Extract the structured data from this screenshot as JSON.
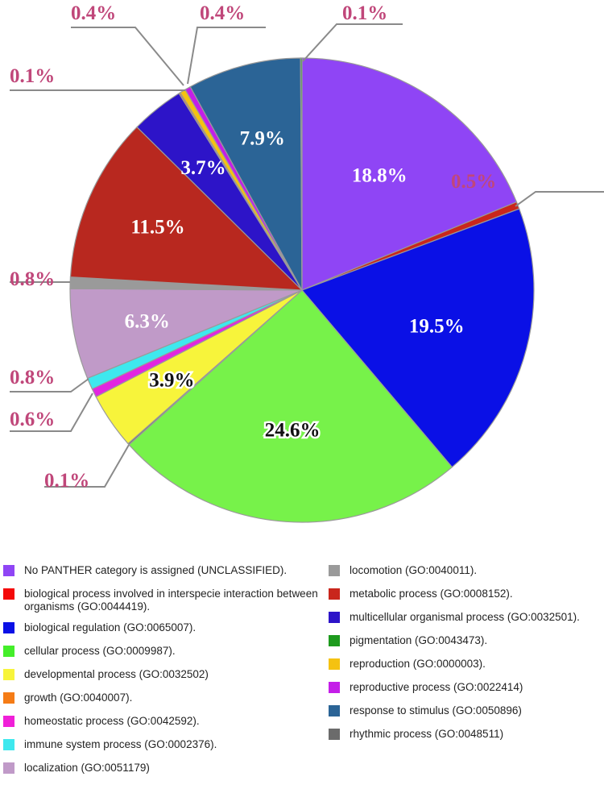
{
  "chart_data": {
    "type": "pie",
    "slices": [
      {
        "label": "No PANTHER category is assigned (UNCLASSIFIED).",
        "value": 18.8,
        "display": "18.8%",
        "color": "#8f45f5",
        "text_color": "#ffffff",
        "label_pos": "inside"
      },
      {
        "label": "metabolic process (GO:0008152).",
        "value": 0.5,
        "display": "0.5%",
        "color": "#c9261c",
        "label_pos": "outside"
      },
      {
        "label": "biological regulation (GO:0065007).",
        "value": 19.5,
        "display": "19.5%",
        "color": "#0a10e6",
        "text_color": "#ffffff",
        "label_pos": "inside"
      },
      {
        "label": "cellular process (GO:0009987).",
        "value": 24.6,
        "display": "24.6%",
        "color": "#77f24a",
        "text_color": "#111111",
        "label_pos": "inside"
      },
      {
        "label": "rhythmic process (GO:0048511)",
        "value": 0.1,
        "display": "0.1%",
        "color": "#6b6b6b",
        "label_pos": "outside"
      },
      {
        "label": "developmental process (GO:0032502)",
        "value": 3.9,
        "display": "3.9%",
        "color": "#f7f43b",
        "text_color": "#111111",
        "label_pos": "inside"
      },
      {
        "label": "homeostatic process (GO:0042592).",
        "value": 0.6,
        "display": "0.6%",
        "color": "#e226e0",
        "label_pos": "outside"
      },
      {
        "label": "immune system process (GO:0002376).",
        "value": 0.8,
        "display": "0.8%",
        "color": "#3ee8ee",
        "label_pos": "outside"
      },
      {
        "label": "localization (GO:0051179)",
        "value": 6.3,
        "display": "6.3%",
        "color": "#c09ac8",
        "text_color": "#ffffff",
        "label_pos": "inside"
      },
      {
        "label": "locomotion (GO:0040011).",
        "value": 0.8,
        "display": "0.8%",
        "color": "#9a9a9a",
        "label_pos": "outside"
      },
      {
        "label": "biological process involved in interspecie interaction between organisms (GO:0044419).",
        "value": 11.5,
        "display": "11.5%",
        "color": "#b8281f",
        "text_color": "#ffffff",
        "label_pos": "inside"
      },
      {
        "label": "multicellular organismal process (GO:0032501).",
        "value": 3.7,
        "display": "3.7%",
        "color": "#2d14c8",
        "text_color": "#ffffff",
        "label_pos": "inside"
      },
      {
        "label": "growth (GO:0040007).",
        "value": 0.1,
        "display": "0.1%",
        "color": "#f57c16",
        "label_pos": "outside"
      },
      {
        "label": "reproduction (GO:0000003).",
        "value": 0.4,
        "display": "0.4%",
        "color": "#f5c211",
        "label_pos": "outside"
      },
      {
        "label": "reproductive process (GO:0022414)",
        "value": 0.4,
        "display": "0.4%",
        "color": "#c41ee8",
        "label_pos": "outside"
      },
      {
        "label": "response to stimulus (GO:0050896)",
        "value": 7.9,
        "display": "7.9%",
        "color": "#2b6496",
        "text_color": "#ffffff",
        "label_pos": "inside"
      },
      {
        "label": "pigmentation (GO:0043473).",
        "value": 0.1,
        "display": "0.1%",
        "color": "#1d9a1d",
        "label_pos": "outside"
      }
    ],
    "legend": {
      "left": [
        {
          "label": "No PANTHER category is assigned (UNCLASSIFIED).",
          "color": "#8f45f5"
        },
        {
          "label": "biological process involved in interspecie interaction between organisms (GO:0044419).",
          "color": "#f40a0a"
        },
        {
          "label": "biological regulation (GO:0065007).",
          "color": "#0a10e6"
        },
        {
          "label": "cellular process (GO:0009987).",
          "color": "#44ee2a"
        },
        {
          "label": "developmental process (GO:0032502)",
          "color": "#f7f43b"
        },
        {
          "label": "growth (GO:0040007).",
          "color": "#f57c16"
        },
        {
          "label": "homeostatic process (GO:0042592).",
          "color": "#f020d8"
        },
        {
          "label": "immune system process (GO:0002376).",
          "color": "#3ee8ee"
        },
        {
          "label": "localization (GO:0051179)",
          "color": "#c09ac8"
        }
      ],
      "right": [
        {
          "label": "locomotion (GO:0040011).",
          "color": "#9a9a9a"
        },
        {
          "label": "metabolic process (GO:0008152).",
          "color": "#c9261c"
        },
        {
          "label": "multicellular organismal process (GO:0032501).",
          "color": "#2d14c8"
        },
        {
          "label": "pigmentation (GO:0043473).",
          "color": "#1d9a1d"
        },
        {
          "label": "reproduction (GO:0000003).",
          "color": "#f5c211"
        },
        {
          "label": "reproductive process (GO:0022414)",
          "color": "#c41ee8"
        },
        {
          "label": "response to stimulus (GO:0050896)",
          "color": "#2b6496"
        },
        {
          "label": "rhythmic process (GO:0048511)",
          "color": "#6b6b6b"
        }
      ]
    }
  }
}
